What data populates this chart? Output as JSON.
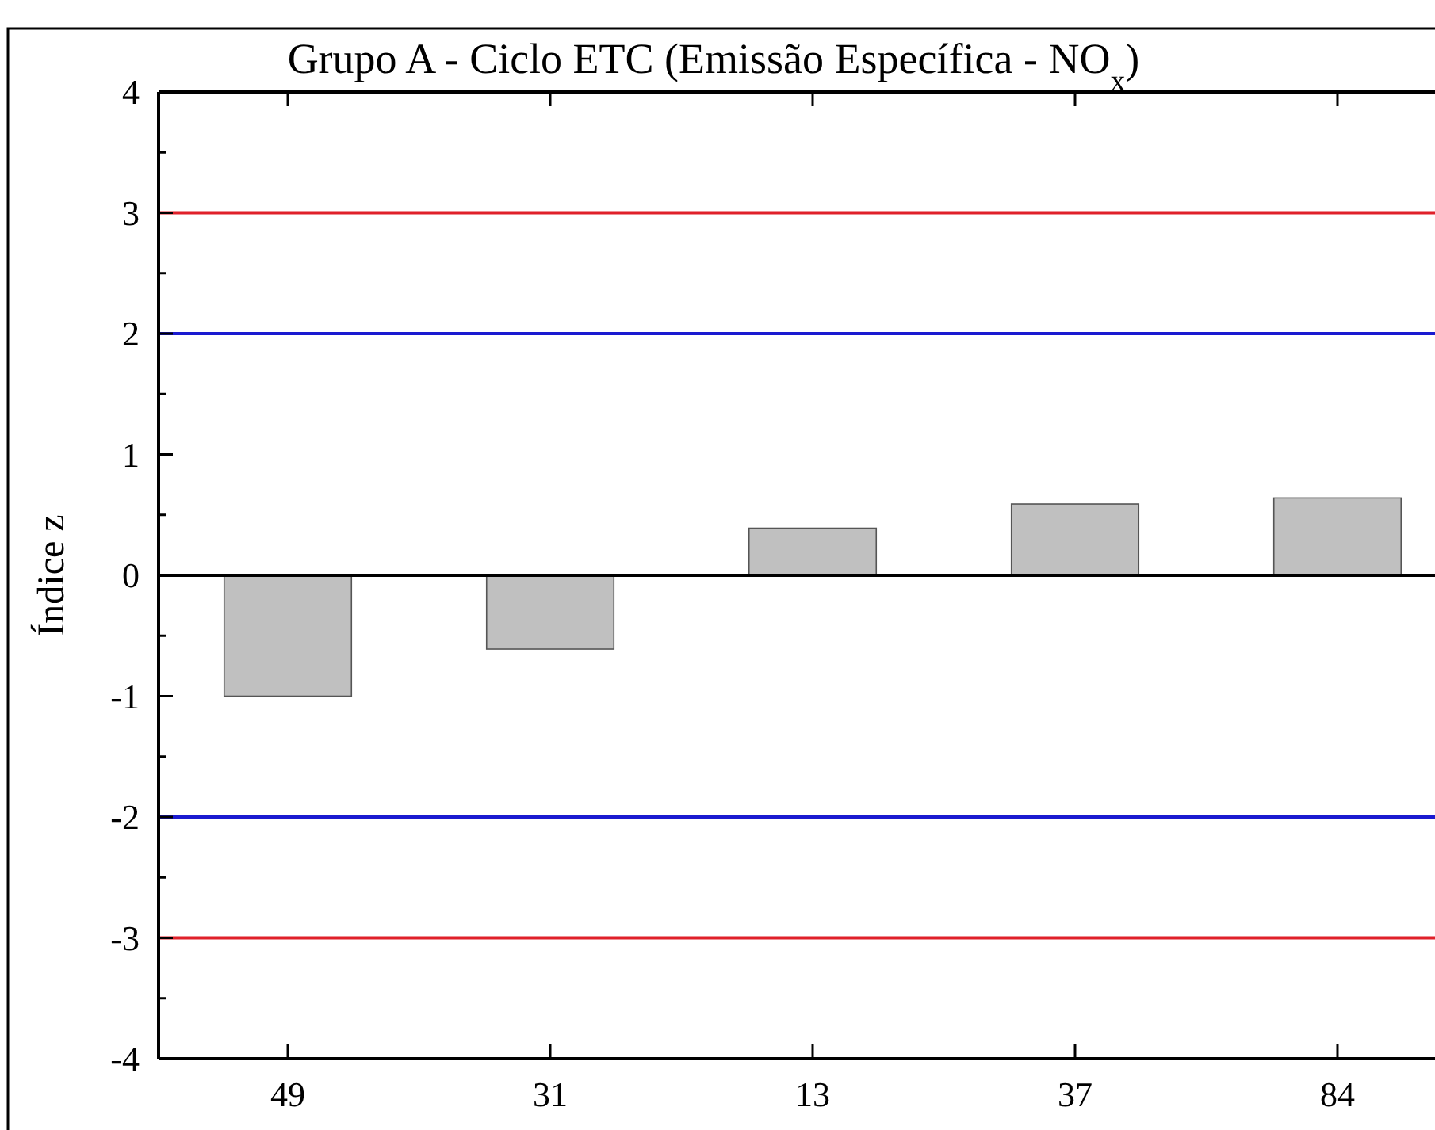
{
  "chart_data": {
    "type": "bar",
    "title": "Grupo A - Ciclo ETC (Emissão Específica - NO$_{x}$)",
    "ylabel": "Índice z",
    "categories": [
      "49",
      "31",
      "13",
      "37",
      "84"
    ],
    "values": [
      -1.0,
      -0.61,
      0.39,
      0.59,
      0.64
    ],
    "color": "#c0c0c0",
    "ylim": [
      -4,
      4
    ],
    "yticks": [
      -4,
      -3,
      -2,
      -1,
      0,
      1,
      2,
      3,
      4
    ],
    "grid": false,
    "ref_lines": [
      {
        "axis": "y",
        "value": 3,
        "color": "#e0202a"
      },
      {
        "axis": "y",
        "value": 2,
        "color": "#1a1ad0"
      },
      {
        "axis": "y",
        "value": -2,
        "color": "#1a1ad0"
      },
      {
        "axis": "y",
        "value": -3,
        "color": "#e0202a"
      }
    ]
  }
}
